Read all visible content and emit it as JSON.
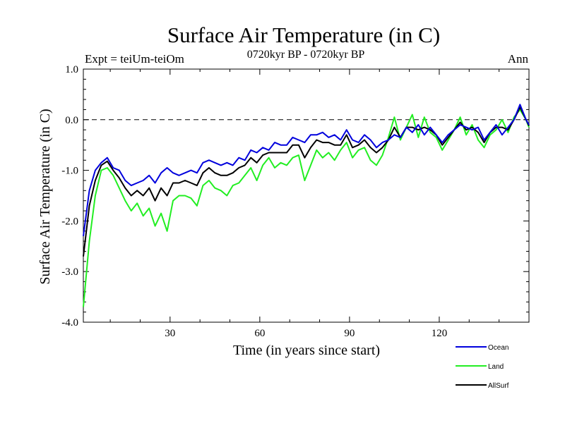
{
  "chart_data": {
    "type": "line",
    "title": "Surface Air Temperature (in C)",
    "subtitle": "0720kyr BP - 0720kyr BP",
    "expt_label": "Expt = teiUm-teiOm",
    "period_label": "Ann",
    "xlabel": "Time (in years since start)",
    "ylabel": "Surface Air Temperature (in C)",
    "xlim": [
      1,
      150
    ],
    "ylim": [
      -4.0,
      1.0
    ],
    "x_ticks": [
      30,
      60,
      90,
      120
    ],
    "x_tick_labels": [
      "30",
      "60",
      "90",
      "120"
    ],
    "y_ticks": [
      1.0,
      0.0,
      -1.0,
      -2.0,
      -3.0,
      -4.0
    ],
    "y_tick_labels": [
      "1.0",
      "0.0",
      "-1.0",
      "-2.0",
      "-3.0",
      "-4.0"
    ],
    "reference_line": 0.0,
    "legend_position": "bottom-right",
    "series": [
      {
        "name": "Ocean",
        "color": "#0000dd",
        "x": [
          1,
          3,
          5,
          7,
          9,
          11,
          13,
          15,
          17,
          19,
          21,
          23,
          25,
          27,
          29,
          31,
          33,
          35,
          37,
          39,
          41,
          43,
          45,
          47,
          49,
          51,
          53,
          55,
          57,
          59,
          61,
          63,
          65,
          67,
          69,
          71,
          73,
          75,
          77,
          79,
          81,
          83,
          85,
          87,
          89,
          91,
          93,
          95,
          97,
          99,
          101,
          103,
          105,
          107,
          109,
          111,
          113,
          115,
          117,
          119,
          121,
          123,
          125,
          127,
          129,
          131,
          133,
          135,
          137,
          139,
          141,
          143,
          145,
          147,
          149,
          150
        ],
        "values": [
          -2.3,
          -1.4,
          -1.0,
          -0.85,
          -0.75,
          -0.95,
          -1.0,
          -1.2,
          -1.3,
          -1.25,
          -1.2,
          -1.1,
          -1.25,
          -1.05,
          -0.95,
          -1.05,
          -1.1,
          -1.05,
          -1.0,
          -1.05,
          -0.85,
          -0.8,
          -0.85,
          -0.9,
          -0.85,
          -0.9,
          -0.75,
          -0.8,
          -0.6,
          -0.65,
          -0.55,
          -0.6,
          -0.45,
          -0.5,
          -0.5,
          -0.35,
          -0.4,
          -0.45,
          -0.3,
          -0.3,
          -0.25,
          -0.35,
          -0.3,
          -0.4,
          -0.2,
          -0.4,
          -0.45,
          -0.3,
          -0.4,
          -0.55,
          -0.45,
          -0.4,
          -0.3,
          -0.35,
          -0.15,
          -0.25,
          -0.1,
          -0.3,
          -0.15,
          -0.3,
          -0.45,
          -0.3,
          -0.2,
          -0.1,
          -0.15,
          -0.2,
          -0.15,
          -0.4,
          -0.25,
          -0.1,
          -0.3,
          -0.15,
          0.0,
          0.3,
          0.0,
          -0.1
        ]
      },
      {
        "name": "Land",
        "color": "#22ee22",
        "x": [
          1,
          3,
          5,
          7,
          9,
          11,
          13,
          15,
          17,
          19,
          21,
          23,
          25,
          27,
          29,
          31,
          33,
          35,
          37,
          39,
          41,
          43,
          45,
          47,
          49,
          51,
          53,
          55,
          57,
          59,
          61,
          63,
          65,
          67,
          69,
          71,
          73,
          75,
          77,
          79,
          81,
          83,
          85,
          87,
          89,
          91,
          93,
          95,
          97,
          99,
          101,
          103,
          105,
          107,
          109,
          111,
          113,
          115,
          117,
          119,
          121,
          123,
          125,
          127,
          129,
          131,
          133,
          135,
          137,
          139,
          141,
          143,
          145,
          147,
          149,
          150
        ],
        "values": [
          -3.7,
          -2.4,
          -1.5,
          -1.0,
          -0.95,
          -1.1,
          -1.35,
          -1.6,
          -1.8,
          -1.65,
          -1.9,
          -1.75,
          -2.1,
          -1.85,
          -2.2,
          -1.6,
          -1.5,
          -1.5,
          -1.55,
          -1.7,
          -1.3,
          -1.2,
          -1.35,
          -1.4,
          -1.5,
          -1.3,
          -1.25,
          -1.1,
          -0.95,
          -1.2,
          -0.9,
          -0.75,
          -0.95,
          -0.85,
          -0.9,
          -0.75,
          -0.7,
          -1.2,
          -0.9,
          -0.6,
          -0.75,
          -0.65,
          -0.8,
          -0.6,
          -0.45,
          -0.75,
          -0.6,
          -0.55,
          -0.8,
          -0.9,
          -0.7,
          -0.35,
          0.05,
          -0.4,
          -0.15,
          0.1,
          -0.35,
          0.05,
          -0.25,
          -0.35,
          -0.6,
          -0.4,
          -0.2,
          0.05,
          -0.3,
          -0.1,
          -0.4,
          -0.55,
          -0.3,
          -0.2,
          0.0,
          -0.25,
          0.05,
          0.2,
          0.0,
          -0.15
        ]
      },
      {
        "name": "AllSurf",
        "color": "#000000",
        "x": [
          1,
          3,
          5,
          7,
          9,
          11,
          13,
          15,
          17,
          19,
          21,
          23,
          25,
          27,
          29,
          31,
          33,
          35,
          37,
          39,
          41,
          43,
          45,
          47,
          49,
          51,
          53,
          55,
          57,
          59,
          61,
          63,
          65,
          67,
          69,
          71,
          73,
          75,
          77,
          79,
          81,
          83,
          85,
          87,
          89,
          91,
          93,
          95,
          97,
          99,
          101,
          103,
          105,
          107,
          109,
          111,
          113,
          115,
          117,
          119,
          121,
          123,
          125,
          127,
          129,
          131,
          133,
          135,
          137,
          139,
          141,
          143,
          145,
          147,
          149,
          150
        ],
        "values": [
          -2.7,
          -1.7,
          -1.2,
          -0.9,
          -0.82,
          -1.0,
          -1.15,
          -1.35,
          -1.5,
          -1.4,
          -1.5,
          -1.35,
          -1.6,
          -1.35,
          -1.5,
          -1.25,
          -1.25,
          -1.2,
          -1.25,
          -1.3,
          -1.05,
          -0.95,
          -1.05,
          -1.1,
          -1.1,
          -1.05,
          -0.95,
          -0.9,
          -0.75,
          -0.85,
          -0.7,
          -0.65,
          -0.65,
          -0.65,
          -0.65,
          -0.5,
          -0.5,
          -0.75,
          -0.55,
          -0.4,
          -0.45,
          -0.45,
          -0.5,
          -0.5,
          -0.3,
          -0.55,
          -0.5,
          -0.4,
          -0.55,
          -0.65,
          -0.55,
          -0.4,
          -0.15,
          -0.35,
          -0.15,
          -0.15,
          -0.2,
          -0.15,
          -0.2,
          -0.3,
          -0.5,
          -0.35,
          -0.2,
          -0.05,
          -0.2,
          -0.15,
          -0.25,
          -0.45,
          -0.25,
          -0.15,
          -0.15,
          -0.2,
          0.0,
          0.25,
          0.0,
          -0.12
        ]
      }
    ]
  }
}
